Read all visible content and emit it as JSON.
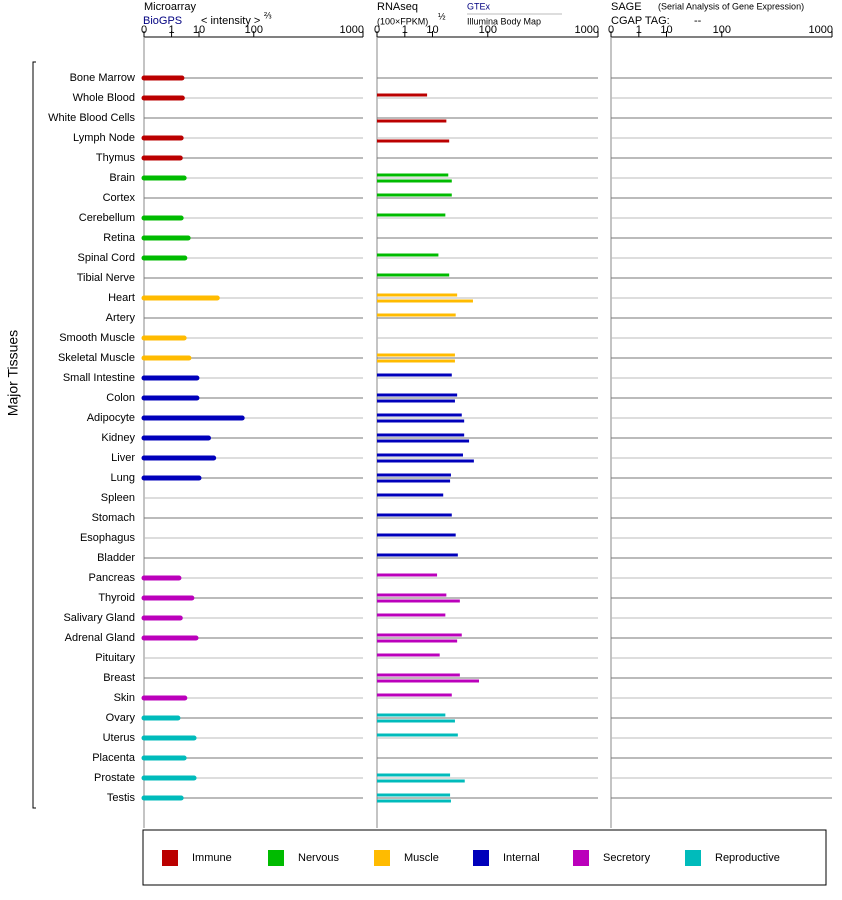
{
  "y_axis_label": "Major Tissues",
  "groups": [
    {
      "name": "Immune",
      "color": "#bb0000",
      "tissues": [
        "Bone Marrow",
        "Whole Blood",
        "White Blood Cells",
        "Lymph Node",
        "Thymus"
      ]
    },
    {
      "name": "Nervous",
      "color": "#00bb00",
      "tissues": [
        "Brain",
        "Cortex",
        "Cerebellum",
        "Retina",
        "Spinal Cord",
        "Tibial Nerve"
      ]
    },
    {
      "name": "Muscle",
      "color": "#ffbb00",
      "tissues": [
        "Heart",
        "Artery",
        "Smooth Muscle",
        "Skeletal Muscle"
      ]
    },
    {
      "name": "Internal",
      "color": "#0000bb",
      "tissues": [
        "Small Intestine",
        "Colon",
        "Adipocyte",
        "Kidney",
        "Liver",
        "Lung",
        "Spleen",
        "Stomach",
        "Esophagus",
        "Bladder"
      ]
    },
    {
      "name": "Secretory",
      "color": "#bb00bb",
      "tissues": [
        "Pancreas",
        "Thyroid",
        "Salivary Gland",
        "Adrenal Gland",
        "Pituitary",
        "Breast",
        "Skin"
      ]
    },
    {
      "name": "Reproductive",
      "color": "#00bbbb",
      "tissues": [
        "Ovary",
        "Uterus",
        "Placenta",
        "Prostate",
        "Testis"
      ]
    }
  ],
  "chart_data": [
    {
      "type": "bar",
      "title": "Microarray",
      "axis_label": "< intensity >",
      "axis_label_exponent": "⅔",
      "xlim": [
        0,
        1000
      ],
      "xticks": [
        0,
        1,
        10,
        100,
        1000
      ],
      "series": [
        {
          "name": "BioGPS",
          "values": [
            2.9,
            3.0,
            null,
            2.7,
            2.5,
            3.5,
            null,
            2.7,
            4.8,
            3.7,
            null,
            26,
            null,
            3.5,
            5.1,
            8.8,
            8.8,
            69,
            17,
            22,
            10,
            null,
            null,
            null,
            null,
            2.2,
            6.3,
            2.5,
            8.3,
            null,
            null,
            3.7,
            2.0,
            7.3,
            3.5,
            7.3,
            2.7
          ]
        }
      ]
    },
    {
      "type": "bar",
      "title": "RNAseq",
      "axis_label": "(100×FPKM)",
      "axis_label_exponent": "½",
      "xlim": [
        0,
        1000
      ],
      "xticks": [
        0,
        1,
        10,
        100,
        1000
      ],
      "series": [
        {
          "name": "GTEx",
          "values": [
            null,
            7.1,
            null,
            null,
            null,
            23,
            27,
            20,
            null,
            14,
            24,
            34,
            32,
            null,
            31,
            27,
            34,
            41,
            45,
            43,
            26,
            18,
            27,
            32,
            35,
            13,
            21,
            20,
            41,
            15,
            38,
            27,
            20,
            35,
            null,
            25,
            25
          ]
        },
        {
          "name": "Illumina Body Map",
          "values": [
            null,
            null,
            21,
            24,
            null,
            27,
            null,
            null,
            null,
            null,
            null,
            62,
            null,
            null,
            31,
            null,
            31,
            45,
            54,
            64,
            25,
            null,
            null,
            null,
            null,
            null,
            38,
            null,
            34,
            null,
            76,
            null,
            31,
            null,
            null,
            46,
            26
          ]
        }
      ]
    },
    {
      "type": "bar",
      "title": "SAGE",
      "subtitle": "(Serial Analysis of Gene Expression)",
      "tag_label": "CGAP TAG:",
      "tag": "--",
      "xlim": [
        0,
        1000
      ],
      "xticks": [
        0,
        1,
        10,
        100,
        1000
      ],
      "series": []
    }
  ]
}
